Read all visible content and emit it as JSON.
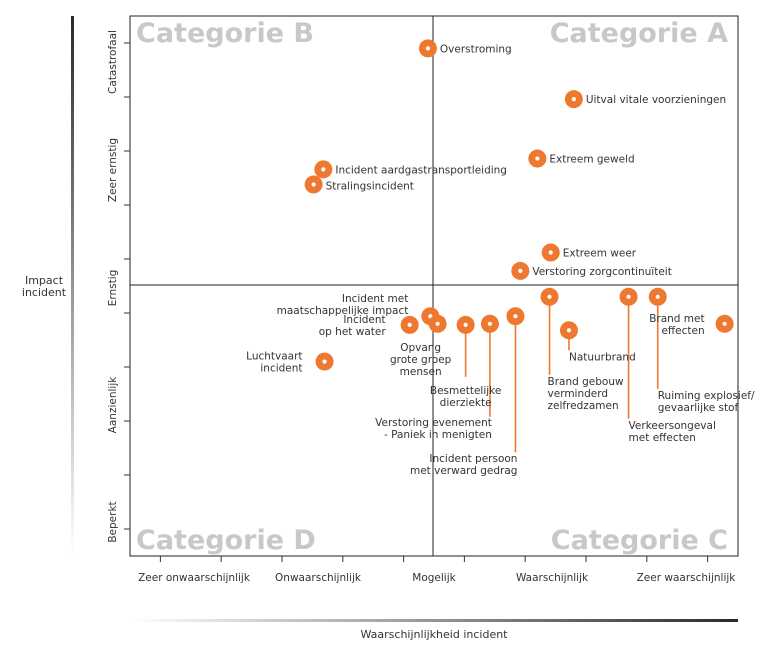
{
  "chart_data": {
    "type": "scatter",
    "title": "",
    "xlabel": "Waarschijnlijkheid incident",
    "ylabel_lines": [
      "Impact",
      "incident"
    ],
    "x_ticks": [
      "Zeer onwaarschijnlijk",
      "Onwaarschijnlijk",
      "Mogelijk",
      "Waarschijnlijk",
      "Zeer waarschijnlijk"
    ],
    "y_ticks": [
      "Beperkt",
      "Aanzienlijk",
      "Ernstig",
      "Zeer ernstig",
      "Catastrofaal"
    ],
    "xlim": [
      0.5,
      5.5
    ],
    "ylim": [
      0.5,
      5.5
    ],
    "quadrants": [
      {
        "name": "Categorie A",
        "corner": "top-right"
      },
      {
        "name": "Categorie B",
        "corner": "top-left"
      },
      {
        "name": "Categorie C",
        "corner": "bottom-right"
      },
      {
        "name": "Categorie D",
        "corner": "bottom-left"
      }
    ],
    "marker_color": "#ee7830",
    "points": [
      {
        "label": "Overstroming",
        "x": 2.95,
        "y": 5.2
      },
      {
        "label": "Uitval vitale voorzieningen",
        "x": 4.15,
        "y": 4.73
      },
      {
        "label": "Incident aardgastransportleiding",
        "x": 2.09,
        "y": 4.08
      },
      {
        "label": "Stralingsincident",
        "x": 2.01,
        "y": 3.94
      },
      {
        "label": "Extreem geweld",
        "x": 3.85,
        "y": 4.18
      },
      {
        "label": "Extreem weer",
        "x": 3.96,
        "y": 3.31
      },
      {
        "label": "Verstoring zorgcontinuïteit",
        "x": 3.71,
        "y": 3.14
      },
      {
        "label": "Incident met maatschappelijke impact",
        "x": 2.97,
        "y": 2.72
      },
      {
        "label": "Incident op het water",
        "x": 2.8,
        "y": 2.64
      },
      {
        "label": "Opvang grote groep mensen",
        "x": 3.03,
        "y": 2.65
      },
      {
        "label": "Besmettelijke dierziekte",
        "x": 3.26,
        "y": 2.64
      },
      {
        "label": "Verstoring evenement - Paniek in menigten",
        "x": 3.46,
        "y": 2.65
      },
      {
        "label": "Incident persoon met verward gedrag",
        "x": 3.67,
        "y": 2.72
      },
      {
        "label": "Luchtvaart incident",
        "x": 2.1,
        "y": 2.3
      },
      {
        "label": "Brand gebouw verminderd zelfredzamen",
        "x": 3.95,
        "y": 2.9
      },
      {
        "label": "Natuurbrand",
        "x": 4.11,
        "y": 2.59
      },
      {
        "label": "Verkeersongeval met effecten",
        "x": 4.6,
        "y": 2.9
      },
      {
        "label": "Ruiming explosief/ gevaarlijke stof",
        "x": 4.84,
        "y": 2.9
      },
      {
        "label": "Brand met effecten",
        "x": 5.39,
        "y": 2.65
      }
    ]
  },
  "annotations": [
    {
      "name": "overstroming",
      "lines": [
        "Overstroming"
      ]
    },
    {
      "name": "uitval-vitale-voorzieningen",
      "lines": [
        "Uitval vitale voorzieningen"
      ]
    },
    {
      "name": "incident-aardgastransportleiding",
      "lines": [
        "Incident aardgastransportleiding"
      ]
    },
    {
      "name": "stralingsincident",
      "lines": [
        "Stralingsincident"
      ]
    },
    {
      "name": "extreem-geweld",
      "lines": [
        "Extreem geweld"
      ]
    },
    {
      "name": "extreem-weer",
      "lines": [
        "Extreem weer"
      ]
    },
    {
      "name": "verstoring-zorgcontinuiteit",
      "lines": [
        "Verstoring zorgcontinuïteit"
      ]
    },
    {
      "name": "incident-maatschappelijke-impact",
      "lines": [
        "Incident met",
        "maatschappelijke impact"
      ]
    },
    {
      "name": "incident-op-het-water",
      "lines": [
        "Incident",
        "op het water"
      ]
    },
    {
      "name": "opvang-grote-groep",
      "lines": [
        "Opvang",
        "grote groep",
        "mensen"
      ]
    },
    {
      "name": "besmettelijke-dierziekte",
      "lines": [
        "Besmettelijke",
        "dierziekte"
      ]
    },
    {
      "name": "verstoring-evenement",
      "lines": [
        "Verstoring evenement",
        "- Paniek in menigten"
      ]
    },
    {
      "name": "incident-persoon-verward",
      "lines": [
        "Incident persoon",
        "met verward gedrag"
      ]
    },
    {
      "name": "luchtvaart-incident",
      "lines": [
        "Luchtvaart",
        "incident"
      ]
    },
    {
      "name": "brand-gebouw",
      "lines": [
        "Brand gebouw",
        "verminderd",
        "zelfredzamen"
      ]
    },
    {
      "name": "natuurbrand",
      "lines": [
        "Natuurbrand"
      ]
    },
    {
      "name": "verkeersongeval",
      "lines": [
        "Verkeersongeval",
        "met effecten"
      ]
    },
    {
      "name": "ruiming-explosief",
      "lines": [
        "Ruiming explosief/",
        "gevaarlijke stof"
      ]
    },
    {
      "name": "brand-met-effecten",
      "lines": [
        "Brand met",
        "effecten"
      ]
    }
  ]
}
